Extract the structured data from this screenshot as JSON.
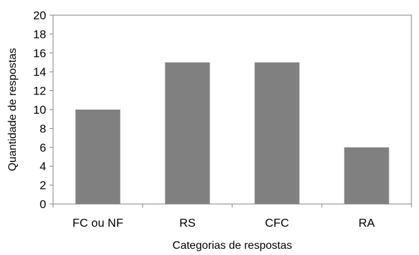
{
  "chart_data": {
    "type": "bar",
    "title": "",
    "xlabel": "Categorias de respostas",
    "ylabel": "Quantidade de respostas",
    "categories": [
      "FC ou NF",
      "RS",
      "CFC",
      "RA"
    ],
    "values": [
      10,
      15,
      15,
      6
    ],
    "ylim": [
      0,
      20
    ],
    "yticks": [
      0,
      2,
      4,
      6,
      8,
      10,
      12,
      14,
      16,
      18,
      20
    ],
    "grid": false,
    "legend": "none",
    "bar_color": "#808080"
  }
}
